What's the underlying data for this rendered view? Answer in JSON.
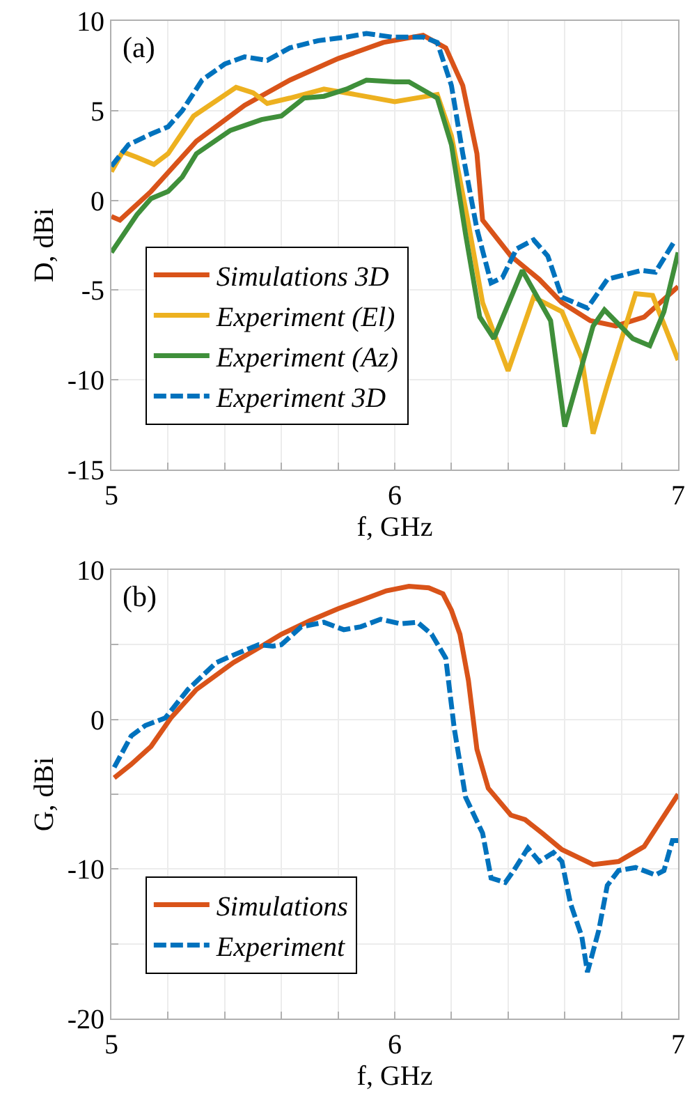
{
  "chart_data": [
    {
      "type": "line",
      "title": "(a)",
      "xlabel": "f, GHz",
      "ylabel": "D, dBi",
      "xlim": [
        5,
        7
      ],
      "ylim": [
        -15,
        10
      ],
      "xticks": [
        5,
        {
          "value": 5.2,
          "label": null
        },
        {
          "value": 5.4,
          "label": null
        },
        {
          "value": 5.6,
          "label": null
        },
        {
          "value": 5.8,
          "label": null
        },
        6,
        {
          "value": 6.2,
          "label": null
        },
        {
          "value": 6.4,
          "label": null
        },
        {
          "value": 6.6,
          "label": null
        },
        {
          "value": 6.8,
          "label": null
        },
        7
      ],
      "yticks": [
        -15,
        -10,
        -5,
        0,
        5,
        10
      ],
      "grid": true,
      "legend": "bottom left",
      "marker": "none",
      "series": [
        {
          "name": "Simulations 3D",
          "color": "#d95319",
          "line_style": "solid",
          "x": [
            5.0,
            5.03,
            5.14,
            5.3,
            5.47,
            5.63,
            5.8,
            5.96,
            6.1,
            6.18,
            6.24,
            6.29,
            6.31,
            6.41,
            6.51,
            6.59,
            6.69,
            6.78,
            6.88,
            7.0
          ],
          "values": [
            -0.9,
            -1.1,
            0.5,
            3.3,
            5.3,
            6.7,
            7.9,
            8.8,
            9.2,
            8.5,
            6.4,
            2.6,
            -1.1,
            -3.1,
            -4.4,
            -5.7,
            -6.7,
            -7.0,
            -6.5,
            -4.8
          ]
        },
        {
          "name": "Experiment (El)",
          "color": "#edb120",
          "line_style": "solid",
          "x": [
            5.0,
            5.04,
            5.09,
            5.15,
            5.2,
            5.29,
            5.44,
            5.5,
            5.55,
            5.63,
            5.75,
            5.86,
            6.0,
            6.15,
            6.2,
            6.26,
            6.31,
            6.4,
            6.49,
            6.59,
            6.66,
            6.7,
            6.75,
            6.85,
            6.91,
            7.0
          ],
          "values": [
            1.6,
            2.7,
            2.4,
            2.0,
            2.6,
            4.7,
            6.3,
            6.0,
            5.4,
            5.7,
            6.2,
            5.9,
            5.5,
            5.9,
            3.6,
            -1.3,
            -5.7,
            -9.5,
            -5.4,
            -6.2,
            -8.8,
            -13.0,
            -10.3,
            -5.2,
            -5.3,
            -8.9
          ]
        },
        {
          "name": "Experiment (Az)",
          "color": "#3f8f3a",
          "line_style": "solid",
          "x": [
            5.0,
            5.09,
            5.14,
            5.2,
            5.25,
            5.3,
            5.42,
            5.53,
            5.6,
            5.68,
            5.75,
            5.83,
            5.9,
            6.0,
            6.05,
            6.15,
            6.2,
            6.25,
            6.3,
            6.35,
            6.45,
            6.55,
            6.6,
            6.7,
            6.74,
            6.84,
            6.9,
            6.95,
            7.0
          ],
          "values": [
            -2.9,
            -0.8,
            0.1,
            0.5,
            1.3,
            2.6,
            3.9,
            4.5,
            4.7,
            5.7,
            5.8,
            6.2,
            6.7,
            6.6,
            6.6,
            5.7,
            3.1,
            -1.9,
            -6.5,
            -7.7,
            -3.9,
            -6.7,
            -12.6,
            -7.0,
            -6.1,
            -7.7,
            -8.1,
            -6.2,
            -2.9
          ]
        },
        {
          "name": "Experiment 3D",
          "color": "#0072bd",
          "line_style": "dashed",
          "x": [
            5.0,
            5.06,
            5.14,
            5.2,
            5.25,
            5.32,
            5.4,
            5.47,
            5.55,
            5.63,
            5.73,
            5.83,
            5.9,
            5.99,
            6.1,
            6.15,
            6.2,
            6.24,
            6.29,
            6.34,
            6.38,
            6.43,
            6.49,
            6.54,
            6.59,
            6.68,
            6.75,
            6.87,
            6.92,
            6.99
          ],
          "values": [
            1.9,
            3.1,
            3.7,
            4.1,
            5.0,
            6.7,
            7.6,
            8.0,
            7.8,
            8.5,
            8.9,
            9.1,
            9.3,
            9.1,
            9.1,
            8.8,
            6.4,
            2.6,
            -1.6,
            -4.6,
            -4.3,
            -2.7,
            -2.2,
            -3.1,
            -5.4,
            -6.0,
            -4.4,
            -3.9,
            -4.0,
            -2.2
          ]
        }
      ]
    },
    {
      "type": "line",
      "title": "(b)",
      "xlabel": "f, GHz",
      "ylabel": "G, dBi",
      "xlim": [
        5,
        7
      ],
      "ylim": [
        -20,
        10
      ],
      "xticks": [
        5,
        {
          "value": 5.2,
          "label": null
        },
        {
          "value": 5.4,
          "label": null
        },
        {
          "value": 5.6,
          "label": null
        },
        {
          "value": 5.8,
          "label": null
        },
        6,
        {
          "value": 6.2,
          "label": null
        },
        {
          "value": 6.4,
          "label": null
        },
        {
          "value": 6.6,
          "label": null
        },
        {
          "value": 6.8,
          "label": null
        },
        7
      ],
      "yticks": [
        -20,
        {
          "value": -15,
          "label": null
        },
        -10,
        {
          "value": -5,
          "label": null
        },
        0,
        {
          "value": 5,
          "label": null
        },
        10
      ],
      "grid": true,
      "legend": "bottom left",
      "marker": "none",
      "series": [
        {
          "name": "Simulations",
          "color": "#d95319",
          "line_style": "solid",
          "x": [
            5.01,
            5.07,
            5.14,
            5.21,
            5.3,
            5.43,
            5.53,
            5.6,
            5.7,
            5.8,
            5.9,
            5.97,
            6.05,
            6.12,
            6.17,
            6.2,
            6.23,
            6.26,
            6.29,
            6.33,
            6.41,
            6.46,
            6.52,
            6.59,
            6.7,
            6.79,
            6.88,
            7.0
          ],
          "values": [
            -3.9,
            -3.0,
            -1.8,
            0.1,
            2.0,
            3.8,
            4.9,
            5.7,
            6.6,
            7.4,
            8.1,
            8.6,
            8.9,
            8.8,
            8.4,
            7.3,
            5.7,
            2.6,
            -2.0,
            -4.6,
            -6.4,
            -6.7,
            -7.6,
            -8.7,
            -9.7,
            -9.5,
            -8.5,
            -5.0
          ]
        },
        {
          "name": "Experiment",
          "color": "#0072bd",
          "line_style": "dashed",
          "x": [
            5.01,
            5.07,
            5.12,
            5.19,
            5.27,
            5.37,
            5.43,
            5.52,
            5.57,
            5.6,
            5.67,
            5.75,
            5.82,
            5.88,
            5.95,
            6.02,
            6.08,
            6.13,
            6.18,
            6.21,
            6.25,
            6.31,
            6.34,
            6.39,
            6.42,
            6.47,
            6.51,
            6.56,
            6.59,
            6.62,
            6.66,
            6.68,
            6.72,
            6.75,
            6.79,
            6.85,
            6.92,
            6.95,
            6.98,
            7.0
          ],
          "values": [
            -3.2,
            -1.1,
            -0.4,
            0.1,
            2.0,
            3.8,
            4.3,
            5.0,
            4.9,
            5.0,
            6.2,
            6.5,
            6.0,
            6.2,
            6.7,
            6.4,
            6.5,
            5.7,
            4.1,
            -0.6,
            -5.2,
            -7.6,
            -10.6,
            -10.9,
            -10.1,
            -8.6,
            -9.5,
            -8.9,
            -9.5,
            -12.3,
            -14.5,
            -16.9,
            -14.1,
            -11.1,
            -10.1,
            -9.9,
            -10.4,
            -10.1,
            -8.1,
            -8.1
          ]
        }
      ]
    }
  ]
}
